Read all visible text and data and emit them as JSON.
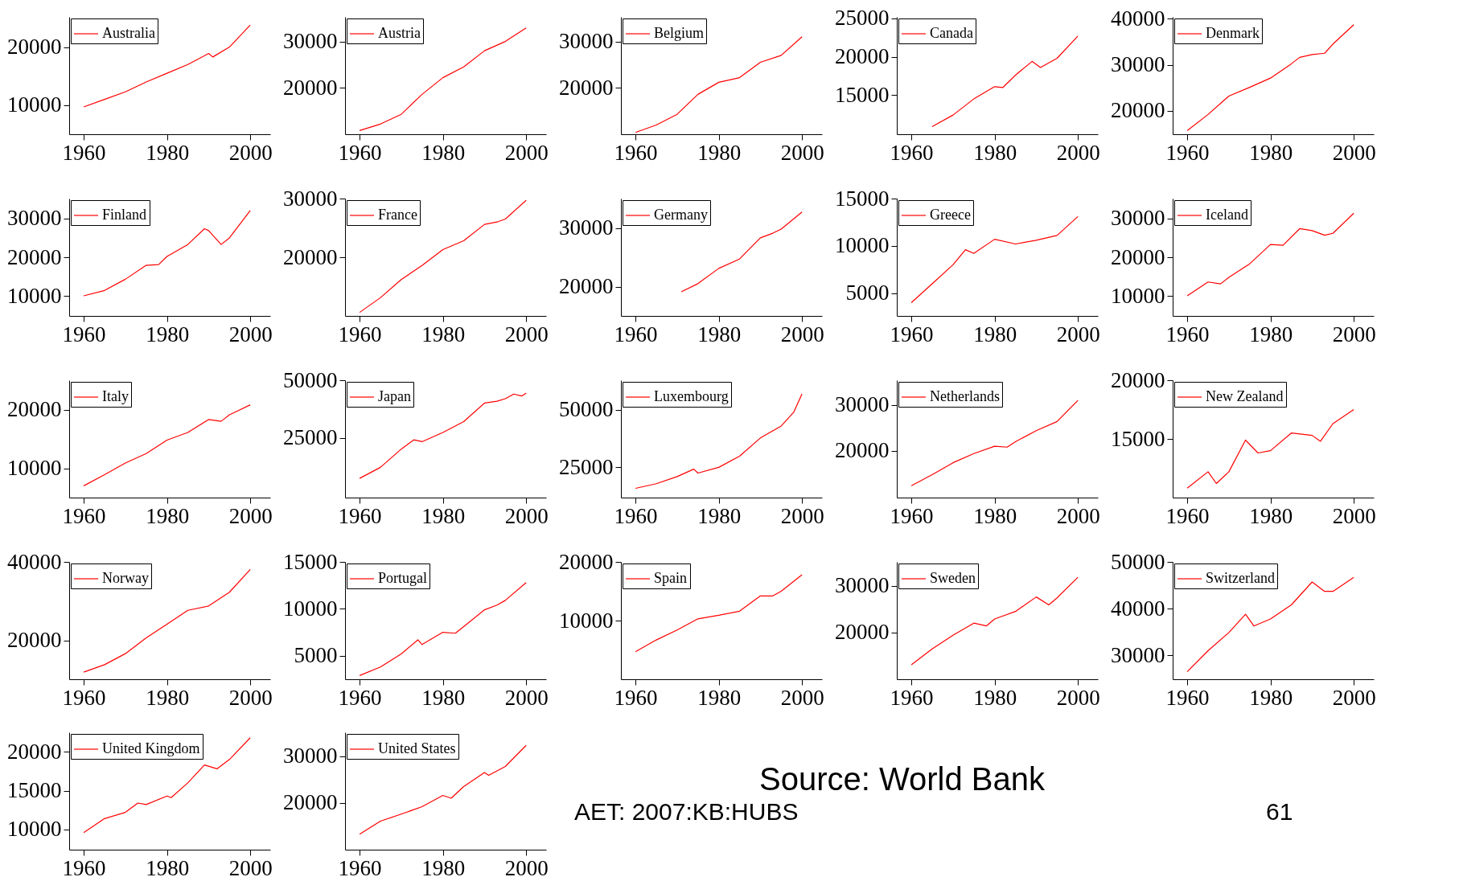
{
  "chart_data": [
    {
      "type": "line",
      "x": [
        1960,
        1965,
        1970,
        1975,
        1980,
        1985,
        1990,
        1991,
        1995,
        2000
      ],
      "series": [
        {
          "name": "Australia",
          "color": "#ff0000",
          "values": [
            9700,
            11000,
            12300,
            14000,
            15500,
            17000,
            18900,
            18300,
            20000,
            23800
          ]
        }
      ],
      "xlim": [
        1956.5,
        2004.8
      ],
      "xticks": [
        1960,
        1980,
        2000
      ],
      "ylim": [
        5000,
        25200
      ],
      "yticks": [
        10000,
        20000
      ],
      "legend": "top left"
    },
    {
      "type": "line",
      "x": [
        1960,
        1965,
        1970,
        1975,
        1980,
        1985,
        1990,
        1995,
        2000
      ],
      "series": [
        {
          "name": "Austria",
          "color": "#ff0000",
          "values": [
            10800,
            12200,
            14300,
            18600,
            22200,
            24500,
            28000,
            30000,
            32900
          ]
        }
      ],
      "xlim": [
        1956.5,
        2004.8
      ],
      "xticks": [
        1960,
        1980,
        2000
      ],
      "ylim": [
        10000,
        35300
      ],
      "yticks": [
        20000,
        30000
      ],
      "legend": "top left"
    },
    {
      "type": "line",
      "x": [
        1960,
        1965,
        1970,
        1975,
        1980,
        1985,
        1990,
        1995,
        2000
      ],
      "series": [
        {
          "name": "Belgium",
          "color": "#ff0000",
          "values": [
            10400,
            12000,
            14300,
            18600,
            21200,
            22200,
            25500,
            27000,
            31000
          ]
        }
      ],
      "xlim": [
        1956.5,
        2004.8
      ],
      "xticks": [
        1960,
        1980,
        2000
      ],
      "ylim": [
        10000,
        35300
      ],
      "yticks": [
        20000,
        30000
      ],
      "legend": "top left"
    },
    {
      "type": "line",
      "x": [
        1965,
        1970,
        1975,
        1980,
        1982,
        1985,
        1989,
        1991,
        1995,
        2000
      ],
      "series": [
        {
          "name": "Canada",
          "color": "#ff0000",
          "values": [
            10900,
            12400,
            14500,
            16100,
            16000,
            17600,
            19400,
            18600,
            19800,
            22700
          ]
        }
      ],
      "xlim": [
        1956.5,
        2004.8
      ],
      "xticks": [
        1960,
        1980,
        2000
      ],
      "ylim": [
        9900,
        25200
      ],
      "yticks": [
        15000,
        20000,
        25000
      ],
      "legend": "top left"
    },
    {
      "type": "line",
      "x": [
        1960,
        1965,
        1970,
        1975,
        1980,
        1985,
        1987,
        1990,
        1993,
        1995,
        2000
      ],
      "series": [
        {
          "name": "Denmark",
          "color": "#ff0000",
          "values": [
            15700,
            19200,
            23200,
            25100,
            27100,
            30200,
            31600,
            32200,
            32500,
            34500,
            38700
          ]
        }
      ],
      "xlim": [
        1956.5,
        2004.8
      ],
      "xticks": [
        1960,
        1980,
        2000
      ],
      "ylim": [
        14900,
        40400
      ],
      "yticks": [
        20000,
        30000,
        40000
      ],
      "legend": "top left"
    },
    {
      "type": "line",
      "x": [
        1960,
        1965,
        1970,
        1975,
        1978,
        1980,
        1985,
        1989,
        1990,
        1993,
        1995,
        2000
      ],
      "series": [
        {
          "name": "Finland",
          "color": "#ff0000",
          "values": [
            10000,
            11400,
            14300,
            17900,
            18100,
            20200,
            23300,
            27400,
            26900,
            23300,
            25000,
            32100
          ]
        }
      ],
      "xlim": [
        1956.5,
        2004.8
      ],
      "xticks": [
        1960,
        1980,
        2000
      ],
      "ylim": [
        4800,
        35200
      ],
      "yticks": [
        10000,
        20000,
        30000
      ],
      "legend": "top left"
    },
    {
      "type": "line",
      "x": [
        1960,
        1965,
        1970,
        1975,
        1980,
        1985,
        1990,
        1993,
        1995,
        2000
      ],
      "series": [
        {
          "name": "France",
          "color": "#ff0000",
          "values": [
            10600,
            13100,
            16200,
            18600,
            21300,
            22800,
            25600,
            26000,
            26500,
            29700
          ]
        }
      ],
      "xlim": [
        1956.5,
        2004.8
      ],
      "xticks": [
        1960,
        1980,
        2000
      ],
      "ylim": [
        10000,
        30000
      ],
      "yticks": [
        20000,
        30000
      ],
      "legend": "top left"
    },
    {
      "type": "line",
      "x": [
        1971,
        1975,
        1980,
        1985,
        1990,
        1993,
        1995,
        2000
      ],
      "series": [
        {
          "name": "Germany",
          "color": "#ff0000",
          "values": [
            19100,
            20500,
            23100,
            24700,
            28300,
            29100,
            29800,
            32700
          ]
        }
      ],
      "xlim": [
        1956.5,
        2004.8
      ],
      "xticks": [
        1960,
        1980,
        2000
      ],
      "ylim": [
        15000,
        35000
      ],
      "yticks": [
        20000,
        30000
      ],
      "legend": "top left"
    },
    {
      "type": "line",
      "x": [
        1960,
        1965,
        1970,
        1973,
        1975,
        1980,
        1985,
        1990,
        1995,
        2000
      ],
      "series": [
        {
          "name": "Greece",
          "color": "#ff0000",
          "values": [
            4000,
            6000,
            8000,
            9600,
            9200,
            10700,
            10200,
            10600,
            11100,
            13100
          ]
        }
      ],
      "xlim": [
        1956.5,
        2004.8
      ],
      "xticks": [
        1960,
        1980,
        2000
      ],
      "ylim": [
        2600,
        15000
      ],
      "yticks": [
        5000,
        10000,
        15000
      ],
      "legend": "top left"
    },
    {
      "type": "line",
      "x": [
        1960,
        1965,
        1968,
        1970,
        1975,
        1980,
        1983,
        1987,
        1990,
        1993,
        1995,
        2000
      ],
      "series": [
        {
          "name": "Iceland",
          "color": "#ff0000",
          "values": [
            10000,
            13600,
            13100,
            14800,
            18300,
            23300,
            23100,
            27400,
            26900,
            25700,
            26200,
            31400
          ]
        }
      ],
      "xlim": [
        1956.5,
        2004.8
      ],
      "xticks": [
        1960,
        1980,
        2000
      ],
      "ylim": [
        4800,
        35200
      ],
      "yticks": [
        10000,
        20000,
        30000
      ],
      "legend": "top left"
    },
    {
      "type": "line",
      "x": [
        1960,
        1965,
        1970,
        1975,
        1980,
        1985,
        1990,
        1993,
        1995,
        2000
      ],
      "series": [
        {
          "name": "Italy",
          "color": "#ff0000",
          "values": [
            7000,
            8900,
            10900,
            12500,
            14800,
            16100,
            18300,
            18000,
            19100,
            20800
          ]
        }
      ],
      "xlim": [
        1956.5,
        2004.8
      ],
      "xticks": [
        1960,
        1980,
        2000
      ],
      "ylim": [
        5000,
        25000
      ],
      "yticks": [
        10000,
        20000
      ],
      "legend": "top left"
    },
    {
      "type": "line",
      "x": [
        1960,
        1965,
        1970,
        1973,
        1975,
        1980,
        1985,
        1990,
        1993,
        1995,
        1997,
        1999,
        2000
      ],
      "series": [
        {
          "name": "Japan",
          "color": "#ff0000",
          "values": [
            7500,
            12300,
            20200,
            24200,
            23400,
            27400,
            32100,
            40100,
            40900,
            42000,
            44000,
            43200,
            44400
          ]
        }
      ],
      "xlim": [
        1956.5,
        2004.8
      ],
      "xticks": [
        1960,
        1980,
        2000
      ],
      "ylim": [
        -800,
        50000
      ],
      "yticks": [
        25000,
        50000
      ],
      "legend": "top left"
    },
    {
      "type": "line",
      "x": [
        1960,
        1965,
        1970,
        1974,
        1975,
        1980,
        1985,
        1990,
        1995,
        1998,
        2000
      ],
      "series": [
        {
          "name": "Luxembourg",
          "color": "#ff0000",
          "values": [
            15900,
            17900,
            21000,
            24200,
            22500,
            25000,
            29800,
            37700,
            42900,
            48800,
            56800
          ]
        }
      ],
      "xlim": [
        1956.5,
        2004.8
      ],
      "xticks": [
        1960,
        1980,
        2000
      ],
      "ylim": [
        11900,
        62700
      ],
      "yticks": [
        25000,
        50000
      ],
      "legend": "top left"
    },
    {
      "type": "line",
      "x": [
        1960,
        1965,
        1970,
        1975,
        1980,
        1983,
        1985,
        1990,
        1995,
        2000
      ],
      "series": [
        {
          "name": "Netherlands",
          "color": "#ff0000",
          "values": [
            12400,
            14800,
            17400,
            19400,
            21000,
            20800,
            22000,
            24400,
            26400,
            31000
          ]
        }
      ],
      "xlim": [
        1956.5,
        2004.8
      ],
      "xticks": [
        1960,
        1980,
        2000
      ],
      "ylim": [
        9800,
        35400
      ],
      "yticks": [
        20000,
        30000
      ],
      "legend": "top left"
    },
    {
      "type": "line",
      "x": [
        1960,
        1965,
        1967,
        1970,
        1974,
        1977,
        1980,
        1985,
        1990,
        1992,
        1995,
        2000
      ],
      "series": [
        {
          "name": "New Zealand",
          "color": "#ff0000",
          "values": [
            10800,
            12200,
            11200,
            12200,
            14900,
            13800,
            14000,
            15500,
            15300,
            14800,
            16300,
            17500
          ]
        }
      ],
      "xlim": [
        1956.5,
        2004.8
      ],
      "xticks": [
        1960,
        1980,
        2000
      ],
      "ylim": [
        10000,
        20000
      ],
      "yticks": [
        15000,
        20000
      ],
      "legend": "top left"
    },
    {
      "type": "line",
      "x": [
        1960,
        1965,
        1970,
        1975,
        1980,
        1985,
        1990,
        1995,
        2000
      ],
      "series": [
        {
          "name": "Norway",
          "color": "#ff0000",
          "values": [
            12000,
            13900,
            16700,
            20700,
            24200,
            27700,
            28800,
            32300,
            38100
          ]
        }
      ],
      "xlim": [
        1956.5,
        2004.8
      ],
      "xticks": [
        1960,
        1980,
        2000
      ],
      "ylim": [
        10200,
        40000
      ],
      "yticks": [
        20000,
        40000
      ],
      "legend": "top left"
    },
    {
      "type": "line",
      "x": [
        1960,
        1965,
        1970,
        1974,
        1975,
        1980,
        1983,
        1985,
        1990,
        1993,
        1995,
        2000
      ],
      "series": [
        {
          "name": "Portugal",
          "color": "#ff0000",
          "values": [
            2900,
            3800,
            5200,
            6700,
            6200,
            7500,
            7400,
            8100,
            9900,
            10400,
            10900,
            12800
          ]
        }
      ],
      "xlim": [
        1956.5,
        2004.8
      ],
      "xticks": [
        1960,
        1980,
        2000
      ],
      "ylim": [
        2500,
        15000
      ],
      "yticks": [
        5000,
        10000,
        15000
      ],
      "legend": "top left"
    },
    {
      "type": "line",
      "x": [
        1960,
        1965,
        1970,
        1975,
        1980,
        1985,
        1990,
        1993,
        1995,
        2000
      ],
      "series": [
        {
          "name": "Spain",
          "color": "#ff0000",
          "values": [
            4700,
            6700,
            8400,
            10300,
            10900,
            11600,
            14200,
            14200,
            15000,
            17800
          ]
        }
      ],
      "xlim": [
        1956.5,
        2004.8
      ],
      "xticks": [
        1960,
        1980,
        2000
      ],
      "ylim": [
        0,
        20000
      ],
      "yticks": [
        10000,
        20000
      ],
      "legend": "top left"
    },
    {
      "type": "line",
      "x": [
        1960,
        1965,
        1970,
        1975,
        1978,
        1980,
        1985,
        1990,
        1993,
        1995,
        2000
      ],
      "series": [
        {
          "name": "Sweden",
          "color": "#ff0000",
          "values": [
            13100,
            16500,
            19400,
            22000,
            21400,
            22900,
            24500,
            27600,
            25900,
            27400,
            31800
          ]
        }
      ],
      "xlim": [
        1956.5,
        2004.8
      ],
      "xticks": [
        1960,
        1980,
        2000
      ],
      "ylim": [
        10000,
        35100
      ],
      "yticks": [
        20000,
        30000
      ],
      "legend": "top left"
    },
    {
      "type": "line",
      "x": [
        1960,
        1965,
        1970,
        1974,
        1976,
        1980,
        1985,
        1990,
        1993,
        1995,
        2000
      ],
      "series": [
        {
          "name": "Switzerland",
          "color": "#ff0000",
          "values": [
            26500,
            31000,
            34900,
            38800,
            36300,
            37800,
            40800,
            45700,
            43700,
            43700,
            46700
          ]
        }
      ],
      "xlim": [
        1956.5,
        2004.8
      ],
      "xticks": [
        1960,
        1980,
        2000
      ],
      "ylim": [
        24900,
        50000
      ],
      "yticks": [
        30000,
        40000,
        50000
      ],
      "legend": "top left"
    },
    {
      "type": "line",
      "x": [
        1960,
        1965,
        1970,
        1973,
        1975,
        1980,
        1981,
        1985,
        1989,
        1992,
        1995,
        2000
      ],
      "series": [
        {
          "name": "United Kingdom",
          "color": "#ff0000",
          "values": [
            9600,
            11400,
            12200,
            13400,
            13200,
            14300,
            14100,
            16000,
            18300,
            17800,
            19000,
            21800
          ]
        }
      ],
      "xlim": [
        1956.5,
        2004.8
      ],
      "xticks": [
        1960,
        1980,
        2000
      ],
      "ylim": [
        7400,
        22500
      ],
      "yticks": [
        10000,
        15000,
        20000
      ],
      "legend": "top left"
    },
    {
      "type": "line",
      "x": [
        1960,
        1965,
        1970,
        1975,
        1980,
        1982,
        1985,
        1990,
        1991,
        1995,
        2000
      ],
      "series": [
        {
          "name": "United States",
          "color": "#ff0000",
          "values": [
            13300,
            16100,
            17600,
            19200,
            21600,
            21000,
            23500,
            26500,
            25900,
            27800,
            32300
          ]
        }
      ],
      "xlim": [
        1956.5,
        2004.8
      ],
      "xticks": [
        1960,
        1980,
        2000
      ],
      "ylim": [
        10000,
        35100
      ],
      "yticks": [
        20000,
        30000
      ],
      "legend": "top left"
    },
    {
      "type": "other",
      "annotations": [
        "AET: 2007:KB:HUBS",
        "Source: World Bank",
        "61"
      ]
    }
  ]
}
